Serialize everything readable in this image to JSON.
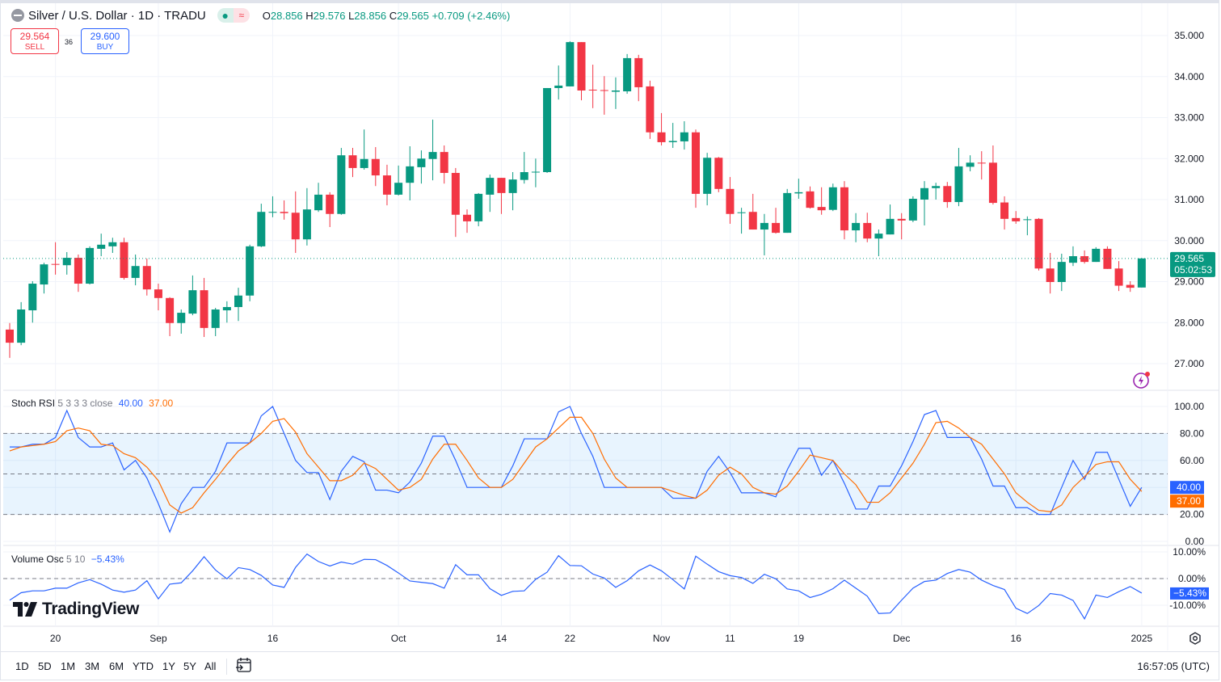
{
  "header": {
    "symbol_title": "Silver / U.S. Dollar · 1D · TRADU",
    "ohlc": {
      "o_label": "O",
      "o": "28.856",
      "h_label": "H",
      "h": "29.576",
      "l_label": "L",
      "l": "28.856",
      "c_label": "C",
      "c": "29.565",
      "change": "+0.709 (+2.46%)"
    },
    "market_status_icons": [
      "market-open-dot",
      "data-delayed-wave"
    ]
  },
  "trade": {
    "sell_price": "29.564",
    "sell_label": "SELL",
    "spread": "36",
    "buy_price": "29.600",
    "buy_label": "BUY"
  },
  "colors": {
    "up": "#089981",
    "down": "#f23645",
    "stoch_k": "#2962ff",
    "stoch_d": "#ff6d00",
    "vol_osc": "#2962ff",
    "band": "#2196f3"
  },
  "price_axis": {
    "ticks": [
      "35.000",
      "34.000",
      "33.000",
      "32.000",
      "31.000",
      "30.000",
      "29.000",
      "28.000",
      "27.000"
    ],
    "tick_values": [
      35,
      34,
      33,
      32,
      31,
      30,
      29,
      28,
      27
    ],
    "last_price": "29.565",
    "countdown": "05:02:53"
  },
  "time_axis": [
    {
      "label": "20",
      "bar": 4
    },
    {
      "label": "Sep",
      "bar": 13
    },
    {
      "label": "16",
      "bar": 23
    },
    {
      "label": "Oct",
      "bar": 34
    },
    {
      "label": "14",
      "bar": 43
    },
    {
      "label": "22",
      "bar": 49
    },
    {
      "label": "Nov",
      "bar": 57
    },
    {
      "label": "11",
      "bar": 63
    },
    {
      "label": "19",
      "bar": 69
    },
    {
      "label": "Dec",
      "bar": 78
    },
    {
      "label": "16",
      "bar": 88
    },
    {
      "label": "2025",
      "bar": 99
    }
  ],
  "chart_data": [
    {
      "type": "candlestick",
      "title": "Silver / U.S. Dollar · 1D · TRADU",
      "ylim": [
        26.6,
        35.2
      ],
      "grid": true,
      "ohlc": [
        [
          27.83,
          27.99,
          27.14,
          27.51
        ],
        [
          27.51,
          28.5,
          27.45,
          28.32
        ],
        [
          28.3,
          29.01,
          28.0,
          28.95
        ],
        [
          28.93,
          29.46,
          28.71,
          29.42
        ],
        [
          29.43,
          29.96,
          29.17,
          29.42
        ],
        [
          29.4,
          29.72,
          29.17,
          29.58
        ],
        [
          29.58,
          29.66,
          28.75,
          28.95
        ],
        [
          28.95,
          29.86,
          28.93,
          29.82
        ],
        [
          29.8,
          30.17,
          29.62,
          29.9
        ],
        [
          29.86,
          30.07,
          29.7,
          29.96
        ],
        [
          29.96,
          30.07,
          29.05,
          29.09
        ],
        [
          29.09,
          29.66,
          28.91,
          29.38
        ],
        [
          29.38,
          29.56,
          28.66,
          28.81
        ],
        [
          28.81,
          28.95,
          28.3,
          28.6
        ],
        [
          28.6,
          28.62,
          27.67,
          27.99
        ],
        [
          27.99,
          28.32,
          27.73,
          28.24
        ],
        [
          28.22,
          29.15,
          28.18,
          28.79
        ],
        [
          28.79,
          29.09,
          27.65,
          27.87
        ],
        [
          27.87,
          28.36,
          27.67,
          28.32
        ],
        [
          28.3,
          28.52,
          28.0,
          28.38
        ],
        [
          28.38,
          28.85,
          28.04,
          28.66
        ],
        [
          28.66,
          29.9,
          28.52,
          29.86
        ],
        [
          29.86,
          30.9,
          29.84,
          30.7
        ],
        [
          30.68,
          31.08,
          30.57,
          30.7
        ],
        [
          30.7,
          30.98,
          30.51,
          30.67
        ],
        [
          30.68,
          31.2,
          29.7,
          30.03
        ],
        [
          30.03,
          31.28,
          29.88,
          30.76
        ],
        [
          30.74,
          31.41,
          30.7,
          31.12
        ],
        [
          31.12,
          31.18,
          30.33,
          30.65
        ],
        [
          30.65,
          32.26,
          30.63,
          32.08
        ],
        [
          32.08,
          32.26,
          31.55,
          31.77
        ],
        [
          31.77,
          32.71,
          31.73,
          31.99
        ],
        [
          31.99,
          32.28,
          31.33,
          31.59
        ],
        [
          31.59,
          31.85,
          30.86,
          31.12
        ],
        [
          31.12,
          31.83,
          31.1,
          31.41
        ],
        [
          31.41,
          32.3,
          30.98,
          31.81
        ],
        [
          31.79,
          32.2,
          31.39,
          32.0
        ],
        [
          31.99,
          32.95,
          31.47,
          32.16
        ],
        [
          32.16,
          32.32,
          31.39,
          31.65
        ],
        [
          31.65,
          31.77,
          30.09,
          30.63
        ],
        [
          30.63,
          30.76,
          30.19,
          30.47
        ],
        [
          30.47,
          31.16,
          30.35,
          31.14
        ],
        [
          31.12,
          31.61,
          30.7,
          31.53
        ],
        [
          31.53,
          31.53,
          30.65,
          31.16
        ],
        [
          31.16,
          31.67,
          30.74,
          31.49
        ],
        [
          31.48,
          32.16,
          31.39,
          31.67
        ],
        [
          31.66,
          32.0,
          31.3,
          31.68
        ],
        [
          31.67,
          33.72,
          31.65,
          33.72
        ],
        [
          33.72,
          34.27,
          33.44,
          33.78
        ],
        [
          33.76,
          34.86,
          33.76,
          34.84
        ],
        [
          34.84,
          34.84,
          33.42,
          33.66
        ],
        [
          33.68,
          34.29,
          33.23,
          33.66
        ],
        [
          33.67,
          34.01,
          33.07,
          33.65
        ],
        [
          33.63,
          33.98,
          33.21,
          33.66
        ],
        [
          33.64,
          34.55,
          33.58,
          34.45
        ],
        [
          34.45,
          34.53,
          33.4,
          33.74
        ],
        [
          33.76,
          33.9,
          32.48,
          32.64
        ],
        [
          32.64,
          33.11,
          32.32,
          32.4
        ],
        [
          32.4,
          32.87,
          32.26,
          32.43
        ],
        [
          32.42,
          32.91,
          32.22,
          32.64
        ],
        [
          32.64,
          32.71,
          30.8,
          31.14
        ],
        [
          31.14,
          32.14,
          30.86,
          32.02
        ],
        [
          32.02,
          32.04,
          31.18,
          31.26
        ],
        [
          31.26,
          31.55,
          30.41,
          30.65
        ],
        [
          30.67,
          30.8,
          30.17,
          30.69
        ],
        [
          30.7,
          31.14,
          30.27,
          30.27
        ],
        [
          30.27,
          30.65,
          29.64,
          30.43
        ],
        [
          30.43,
          30.8,
          30.17,
          30.19
        ],
        [
          30.19,
          31.26,
          30.19,
          31.16
        ],
        [
          31.15,
          31.51,
          31.02,
          31.18
        ],
        [
          31.2,
          31.32,
          30.78,
          30.8
        ],
        [
          30.82,
          31.3,
          30.63,
          30.74
        ],
        [
          30.75,
          31.39,
          30.72,
          31.3
        ],
        [
          31.3,
          31.45,
          30.03,
          30.25
        ],
        [
          30.25,
          30.67,
          29.96,
          30.43
        ],
        [
          30.43,
          30.68,
          29.96,
          30.05
        ],
        [
          30.05,
          30.27,
          29.62,
          30.17
        ],
        [
          30.15,
          30.88,
          30.15,
          30.53
        ],
        [
          30.53,
          30.67,
          30.03,
          30.49
        ],
        [
          30.49,
          31.08,
          30.45,
          31.02
        ],
        [
          31.0,
          31.45,
          30.37,
          31.28
        ],
        [
          31.28,
          31.41,
          31.0,
          31.33
        ],
        [
          31.33,
          31.43,
          30.8,
          30.94
        ],
        [
          30.94,
          32.26,
          30.84,
          31.81
        ],
        [
          31.8,
          32.08,
          31.69,
          31.9
        ],
        [
          31.9,
          32.18,
          31.49,
          31.88
        ],
        [
          31.9,
          32.32,
          30.88,
          30.92
        ],
        [
          30.93,
          31.08,
          30.27,
          30.53
        ],
        [
          30.55,
          30.72,
          30.41,
          30.47
        ],
        [
          30.5,
          30.59,
          30.13,
          30.52
        ],
        [
          30.53,
          30.55,
          29.27,
          29.32
        ],
        [
          29.32,
          29.7,
          28.71,
          28.99
        ],
        [
          28.99,
          29.68,
          28.77,
          29.48
        ],
        [
          29.46,
          29.86,
          29.38,
          29.62
        ],
        [
          29.62,
          29.76,
          29.44,
          29.48
        ],
        [
          29.48,
          29.84,
          29.48,
          29.8
        ],
        [
          29.8,
          29.86,
          29.31,
          29.31
        ],
        [
          29.32,
          29.5,
          28.77,
          28.9
        ],
        [
          28.92,
          29.01,
          28.75,
          28.85
        ],
        [
          28.856,
          29.576,
          28.856,
          29.565
        ]
      ]
    },
    {
      "type": "line",
      "title": "Stoch RSI",
      "params": "5 3 3 3 close",
      "ylim": [
        0,
        100
      ],
      "ticks": [
        "100.00",
        "80.00",
        "60.00",
        "40.00",
        "20.00",
        "0.00"
      ],
      "tick_values": [
        100,
        80,
        60,
        40,
        20,
        0
      ],
      "bands": {
        "upper": 80,
        "middle": 50,
        "lower": 20
      },
      "series": [
        {
          "current": "40.00",
          "values": [
            70,
            70,
            72,
            72,
            77,
            97,
            77,
            70,
            70,
            73,
            53,
            60,
            47,
            28,
            7,
            28,
            40,
            40,
            52,
            73,
            73,
            73,
            93,
            100,
            80,
            60,
            51,
            51,
            31,
            52,
            63,
            59,
            38,
            38,
            36,
            44,
            58,
            78,
            78,
            60,
            40,
            40,
            40,
            40,
            56,
            76,
            76,
            76,
            96,
            100,
            80,
            63,
            40,
            40,
            40,
            40,
            40,
            40,
            32,
            32,
            32,
            52,
            63,
            51,
            36,
            36,
            36,
            33,
            53,
            69,
            69,
            49,
            60,
            43,
            24,
            24,
            41,
            41,
            56,
            74,
            94,
            97,
            77,
            77,
            77,
            61,
            41,
            41,
            25,
            25,
            20,
            20,
            40,
            60,
            46,
            66,
            66,
            46,
            26,
            40
          ]
        },
        {
          "current": "37.00",
          "values": [
            67,
            70,
            71,
            72,
            74,
            82,
            84,
            82,
            72,
            71,
            65,
            62,
            55,
            45,
            27,
            21,
            25,
            36,
            46,
            57,
            67,
            73,
            80,
            89,
            91,
            81,
            65,
            55,
            45,
            45,
            49,
            58,
            54,
            46,
            38,
            40,
            46,
            61,
            72,
            72,
            60,
            47,
            40,
            40,
            46,
            58,
            70,
            76,
            84,
            92,
            92,
            80,
            61,
            47,
            40,
            40,
            40,
            40,
            37,
            34,
            32,
            38,
            49,
            55,
            50,
            40,
            36,
            35,
            41,
            52,
            64,
            62,
            60,
            50,
            42,
            29,
            29,
            36,
            47,
            58,
            72,
            88,
            89,
            84,
            77,
            72,
            61,
            50,
            36,
            29,
            23,
            22,
            27,
            40,
            48,
            57,
            59,
            59,
            46,
            37
          ]
        }
      ]
    },
    {
      "type": "line",
      "title": "Volume Osc",
      "params": "5 10",
      "ylim": [
        -14,
        12
      ],
      "ticks": [
        "10.00%",
        "0.00%",
        "-10.00%"
      ],
      "tick_values": [
        10,
        0,
        -10
      ],
      "current": "−5.43%",
      "values": [
        -8.1,
        -5.3,
        -4.6,
        -4.6,
        -3.6,
        -3.6,
        -1.6,
        -0.4,
        -2.1,
        -4.3,
        -5.1,
        -4.3,
        -0.8,
        -7.6,
        -2.1,
        -1.6,
        2.9,
        8.2,
        3.2,
        -0.1,
        4.1,
        3.4,
        1.2,
        -2.4,
        -3.3,
        4.2,
        9.2,
        6.4,
        4.7,
        6.2,
        5.4,
        7.2,
        7.1,
        4.9,
        2.1,
        -0.9,
        -1.4,
        -1.9,
        -3.6,
        5.2,
        1.4,
        1.4,
        -3.8,
        -6.3,
        -4.8,
        -4.6,
        -0.3,
        2.4,
        8.6,
        4.9,
        4.8,
        1.7,
        0.2,
        -3.3,
        -0.8,
        2.9,
        5.1,
        2.9,
        -0.4,
        -3.9,
        8.4,
        5.4,
        2.6,
        1.1,
        0.4,
        -1.8,
        1.6,
        -0.1,
        -3.9,
        -4.6,
        -7.1,
        -5.9,
        -3.8,
        -0.6,
        -3.6,
        -6.6,
        -13.1,
        -12.9,
        -8.1,
        -3.6,
        -1.1,
        -0.6,
        1.9,
        3.4,
        2.4,
        -0.6,
        -2.6,
        -4.1,
        -11.1,
        -13.1,
        -10.1,
        -5.6,
        -6.2,
        -8.2,
        -15.1,
        -6.2,
        -7.1,
        -4.9,
        -3.0,
        -5.43
      ]
    }
  ],
  "indicators": {
    "stoch": {
      "name": "Stoch RSI",
      "params": "5 3 3 3 close",
      "k": "40.00",
      "d": "37.00"
    },
    "vol": {
      "name": "Volume Osc",
      "params": "5 10",
      "value": "−5.43%"
    }
  },
  "logo": "TradingView",
  "toolbar": {
    "ranges": [
      "1D",
      "5D",
      "1M",
      "3M",
      "6M",
      "YTD",
      "1Y",
      "5Y",
      "All"
    ],
    "clock": "16:57:05 (UTC)"
  }
}
